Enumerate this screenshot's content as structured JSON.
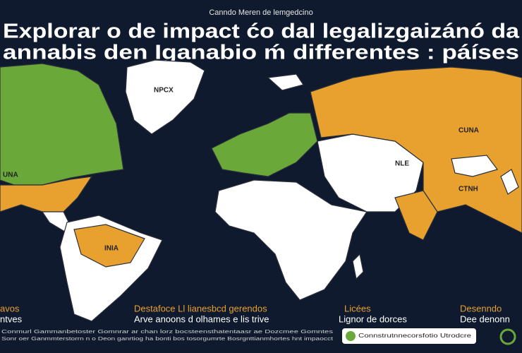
{
  "header": {
    "subtitle": "Canndo Meren de lemgedcino",
    "title_lines": [
      "Explorar o de impact ćo dal legalizgaizánó da",
      "annabis den Iganabio ḿ differentes : páíses"
    ]
  },
  "map": {
    "labels": [
      "NPCX",
      "CUNA",
      "NLE",
      "CTNH",
      "INIA",
      "UNA"
    ]
  },
  "legend": [
    {
      "heading": "avos",
      "text": "ntves"
    },
    {
      "heading": "Destafoce Ll lianesbcd gerendos",
      "text": "Arve anoons d olhames   e lis trive"
    },
    {
      "heading": "Licées",
      "text": "Lignor de dorces"
    },
    {
      "heading": "Desenndo",
      "text": "Dee denonn"
    }
  ],
  "footer": {
    "lines": [
      "Conmurl Gammanbetoster Gomnrar ar chan lorz bocsteensthatentaasr ae Dozcmee Gomntes",
      "Sonr oer Ganmmterstorrn n o Deon ganrtiog ha bonti bos tosorgumrte Bosrgnttianmhortes hnt impaocct"
    ],
    "badge": "Connstrutnnecorsfotio Utrodcre"
  }
}
